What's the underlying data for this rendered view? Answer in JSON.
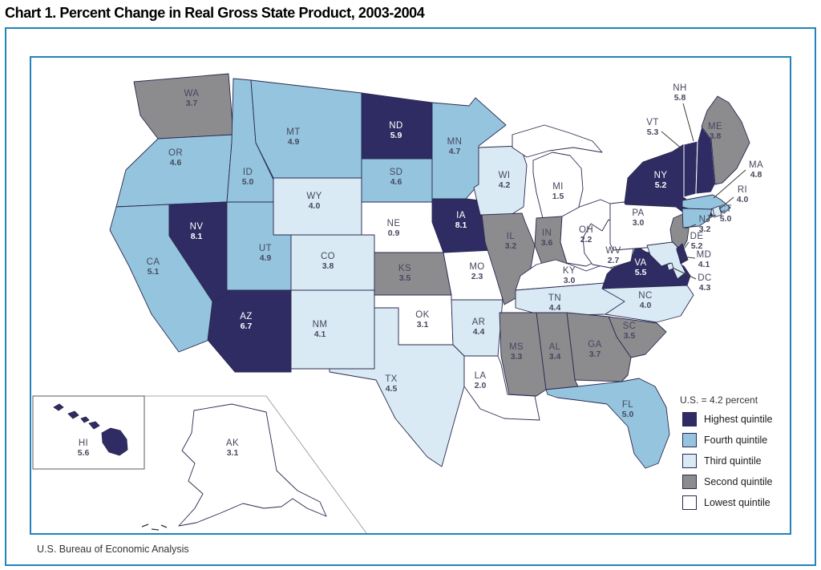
{
  "title": "Chart 1. Percent Change in Real Gross State Product, 2003-2004",
  "source_note": "U.S. Bureau of Economic Analysis",
  "legend": {
    "us_note": "U.S. = 4.2 percent",
    "items": [
      {
        "key": "highest",
        "label": "Highest quintile",
        "color": "#2e2c62"
      },
      {
        "key": "fourth",
        "label": "Fourth quintile",
        "color": "#95c5de"
      },
      {
        "key": "third",
        "label": "Third quintile",
        "color": "#d9eaf4"
      },
      {
        "key": "second",
        "label": "Second quintile",
        "color": "#8c8c8f"
      },
      {
        "key": "lowest",
        "label": "Lowest quintile",
        "color": "#ffffff"
      }
    ]
  },
  "chart_data": {
    "type": "choropleth",
    "title": "Chart 1. Percent Change in Real Gross State Product, 2003-2004",
    "unit": "percent change in real gross state product, 2003-2004",
    "us_value": 4.2,
    "quintile_colors": {
      "highest": "#2e2c62",
      "fourth": "#95c5de",
      "third": "#d9eaf4",
      "second": "#8c8c8f",
      "lowest": "#ffffff"
    },
    "states": [
      {
        "code": "WA",
        "value": 3.7,
        "quintile": "second"
      },
      {
        "code": "OR",
        "value": 4.6,
        "quintile": "fourth"
      },
      {
        "code": "CA",
        "value": 5.1,
        "quintile": "fourth"
      },
      {
        "code": "NV",
        "value": 8.1,
        "quintile": "highest"
      },
      {
        "code": "ID",
        "value": 5.0,
        "quintile": "fourth"
      },
      {
        "code": "MT",
        "value": 4.9,
        "quintile": "fourth"
      },
      {
        "code": "WY",
        "value": 4.0,
        "quintile": "third"
      },
      {
        "code": "UT",
        "value": 4.9,
        "quintile": "fourth"
      },
      {
        "code": "CO",
        "value": 3.8,
        "quintile": "third"
      },
      {
        "code": "AZ",
        "value": 6.7,
        "quintile": "highest"
      },
      {
        "code": "NM",
        "value": 4.1,
        "quintile": "third"
      },
      {
        "code": "ND",
        "value": 5.9,
        "quintile": "highest"
      },
      {
        "code": "SD",
        "value": 4.6,
        "quintile": "fourth"
      },
      {
        "code": "NE",
        "value": 0.9,
        "quintile": "lowest"
      },
      {
        "code": "KS",
        "value": 3.5,
        "quintile": "second"
      },
      {
        "code": "OK",
        "value": 3.1,
        "quintile": "lowest"
      },
      {
        "code": "TX",
        "value": 4.5,
        "quintile": "third"
      },
      {
        "code": "MN",
        "value": 4.7,
        "quintile": "fourth"
      },
      {
        "code": "IA",
        "value": 8.1,
        "quintile": "highest"
      },
      {
        "code": "MO",
        "value": 2.3,
        "quintile": "lowest"
      },
      {
        "code": "AR",
        "value": 4.4,
        "quintile": "third"
      },
      {
        "code": "LA",
        "value": 2.0,
        "quintile": "lowest"
      },
      {
        "code": "WI",
        "value": 4.2,
        "quintile": "third"
      },
      {
        "code": "MI",
        "value": 1.5,
        "quintile": "lowest"
      },
      {
        "code": "IL",
        "value": 3.2,
        "quintile": "second"
      },
      {
        "code": "IN",
        "value": 3.6,
        "quintile": "second"
      },
      {
        "code": "OH",
        "value": 2.2,
        "quintile": "lowest"
      },
      {
        "code": "KY",
        "value": 3.0,
        "quintile": "lowest"
      },
      {
        "code": "TN",
        "value": 4.4,
        "quintile": "third"
      },
      {
        "code": "WV",
        "value": 2.7,
        "quintile": "lowest"
      },
      {
        "code": "VA",
        "value": 5.5,
        "quintile": "highest"
      },
      {
        "code": "NC",
        "value": 4.0,
        "quintile": "third"
      },
      {
        "code": "SC",
        "value": 3.5,
        "quintile": "second"
      },
      {
        "code": "GA",
        "value": 3.7,
        "quintile": "second"
      },
      {
        "code": "AL",
        "value": 3.4,
        "quintile": "second"
      },
      {
        "code": "MS",
        "value": 3.3,
        "quintile": "second"
      },
      {
        "code": "FL",
        "value": 5.0,
        "quintile": "fourth"
      },
      {
        "code": "PA",
        "value": 3.0,
        "quintile": "lowest"
      },
      {
        "code": "NY",
        "value": 5.2,
        "quintile": "highest"
      },
      {
        "code": "NJ",
        "value": 3.2,
        "quintile": "second"
      },
      {
        "code": "VT",
        "value": 5.3,
        "quintile": "highest"
      },
      {
        "code": "NH",
        "value": 5.8,
        "quintile": "highest"
      },
      {
        "code": "ME",
        "value": 3.8,
        "quintile": "second"
      },
      {
        "code": "MA",
        "value": 4.8,
        "quintile": "fourth"
      },
      {
        "code": "RI",
        "value": 4.0,
        "quintile": "third"
      },
      {
        "code": "CT",
        "value": 5.0,
        "quintile": "fourth"
      },
      {
        "code": "MD",
        "value": 4.1,
        "quintile": "third"
      },
      {
        "code": "DE",
        "value": 5.2,
        "quintile": "highest"
      },
      {
        "code": "DC",
        "value": 4.3,
        "quintile": "third"
      },
      {
        "code": "HI",
        "value": 5.6,
        "quintile": "highest"
      },
      {
        "code": "AK",
        "value": 3.1,
        "quintile": "lowest"
      }
    ]
  }
}
